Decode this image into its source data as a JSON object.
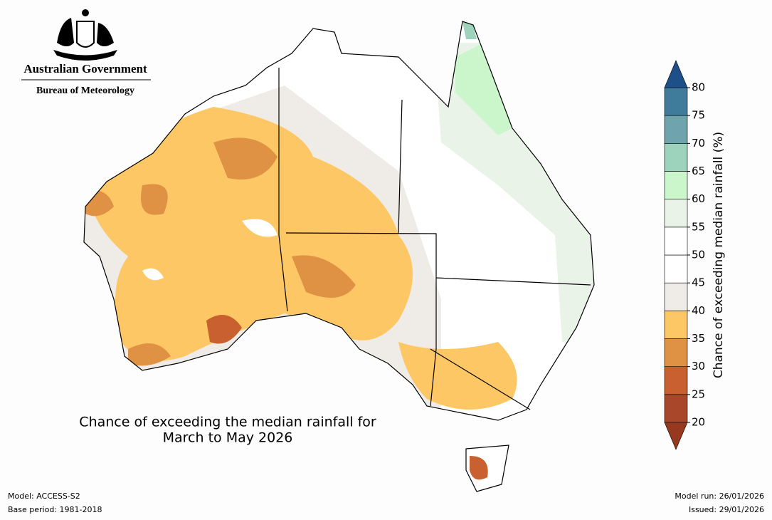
{
  "header": {
    "government": "Australian Government",
    "agency": "Bureau of Meteorology"
  },
  "map": {
    "title_lines": [
      "Chance of exceeding the median rainfall for",
      "March to May 2026"
    ]
  },
  "colorbar": {
    "label": "Chance of exceeding median rainfall (%)",
    "ticks": [
      20,
      25,
      30,
      35,
      40,
      45,
      50,
      55,
      60,
      65,
      70,
      75,
      80
    ],
    "colors": [
      "#a8472a",
      "#c8612f",
      "#df9244",
      "#fdc765",
      "#efebe6",
      "#ffffff",
      "#ffffff",
      "#e9f3e8",
      "#cbf6cb",
      "#9dd2bc",
      "#6fa4ad",
      "#3f7b9b"
    ],
    "under_color": "#97391f",
    "over_color": "#1d4f88"
  },
  "footer": {
    "model": "Model: ACCESS-S2",
    "base_period": "Base period: 1981-2018",
    "model_run": "Model run: 26/01/2026",
    "issued": "Issued: 29/01/2026"
  }
}
